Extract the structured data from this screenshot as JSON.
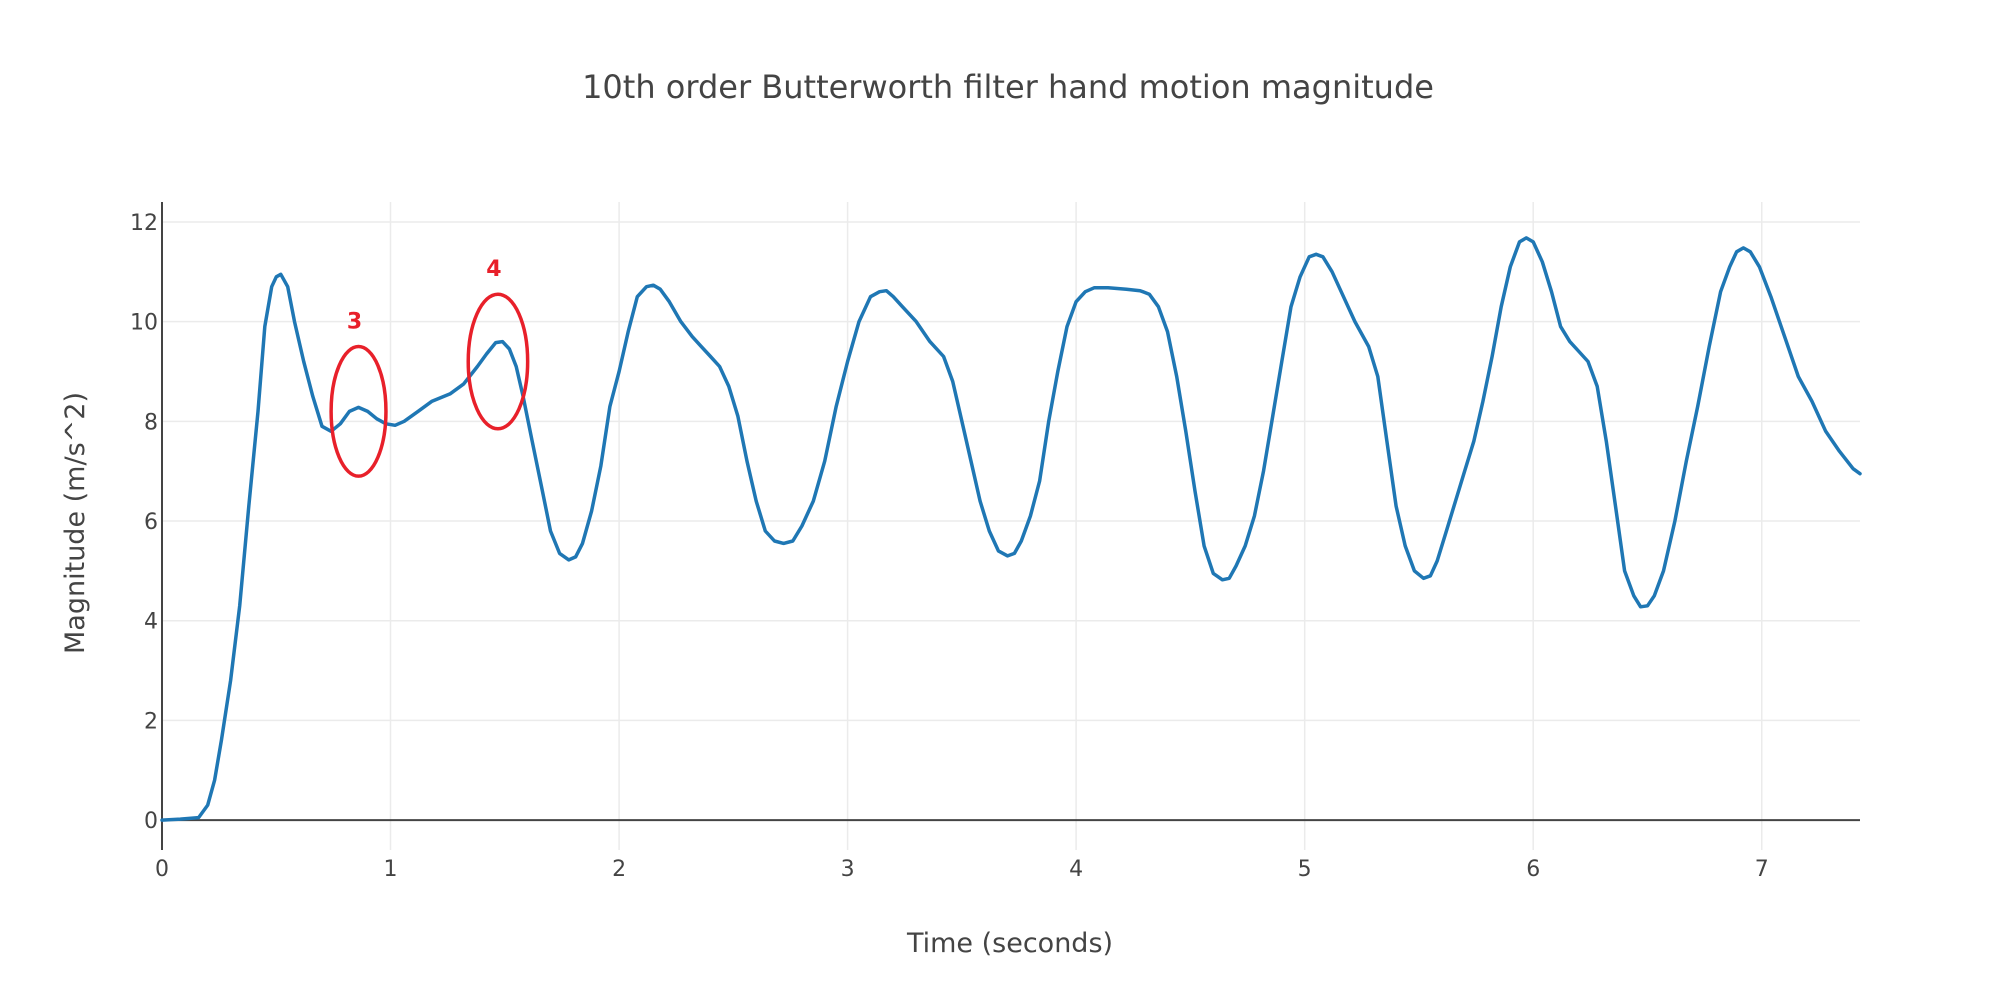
{
  "chart_data": {
    "type": "line",
    "title": "10th order Butterworth filter hand motion magnitude",
    "xlabel": "Time (seconds)",
    "ylabel": "Magnitude (m/s^2)",
    "xlim": [
      0,
      7.43
    ],
    "ylim": [
      -0.6,
      12.4
    ],
    "x_ticks": [
      0,
      1,
      2,
      3,
      4,
      5,
      6,
      7
    ],
    "x_tick_labels": [
      "0",
      "1",
      "2",
      "3",
      "4",
      "5",
      "6",
      "7"
    ],
    "y_ticks": [
      0,
      2,
      4,
      6,
      8,
      10,
      12
    ],
    "y_tick_labels": [
      "0",
      "2",
      "4",
      "6",
      "8",
      "10",
      "12"
    ],
    "grid": true,
    "legend": "none",
    "series": [
      {
        "color": "#1f77b4",
        "points": [
          [
            0,
            0
          ],
          [
            0.08,
            0.02
          ],
          [
            0.16,
            0.05
          ],
          [
            0.2,
            0.3
          ],
          [
            0.23,
            0.8
          ],
          [
            0.26,
            1.6
          ],
          [
            0.3,
            2.8
          ],
          [
            0.34,
            4.3
          ],
          [
            0.38,
            6.3
          ],
          [
            0.42,
            8.2
          ],
          [
            0.45,
            9.9
          ],
          [
            0.48,
            10.7
          ],
          [
            0.5,
            10.9
          ],
          [
            0.52,
            10.95
          ],
          [
            0.55,
            10.7
          ],
          [
            0.58,
            10.0
          ],
          [
            0.62,
            9.2
          ],
          [
            0.66,
            8.5
          ],
          [
            0.7,
            7.9
          ],
          [
            0.74,
            7.8
          ],
          [
            0.78,
            7.95
          ],
          [
            0.82,
            8.2
          ],
          [
            0.86,
            8.28
          ],
          [
            0.9,
            8.2
          ],
          [
            0.94,
            8.05
          ],
          [
            0.98,
            7.95
          ],
          [
            1.02,
            7.92
          ],
          [
            1.06,
            8.0
          ],
          [
            1.12,
            8.2
          ],
          [
            1.18,
            8.4
          ],
          [
            1.26,
            8.55
          ],
          [
            1.32,
            8.75
          ],
          [
            1.38,
            9.1
          ],
          [
            1.42,
            9.35
          ],
          [
            1.46,
            9.58
          ],
          [
            1.49,
            9.6
          ],
          [
            1.52,
            9.45
          ],
          [
            1.55,
            9.1
          ],
          [
            1.58,
            8.5
          ],
          [
            1.62,
            7.6
          ],
          [
            1.66,
            6.7
          ],
          [
            1.7,
            5.8
          ],
          [
            1.74,
            5.35
          ],
          [
            1.78,
            5.22
          ],
          [
            1.81,
            5.28
          ],
          [
            1.84,
            5.55
          ],
          [
            1.88,
            6.2
          ],
          [
            1.92,
            7.1
          ],
          [
            1.96,
            8.3
          ],
          [
            2.0,
            9.0
          ],
          [
            2.04,
            9.8
          ],
          [
            2.08,
            10.5
          ],
          [
            2.12,
            10.7
          ],
          [
            2.15,
            10.73
          ],
          [
            2.18,
            10.65
          ],
          [
            2.22,
            10.4
          ],
          [
            2.27,
            10.0
          ],
          [
            2.32,
            9.7
          ],
          [
            2.36,
            9.5
          ],
          [
            2.4,
            9.3
          ],
          [
            2.44,
            9.1
          ],
          [
            2.48,
            8.7
          ],
          [
            2.52,
            8.1
          ],
          [
            2.56,
            7.2
          ],
          [
            2.6,
            6.4
          ],
          [
            2.64,
            5.8
          ],
          [
            2.68,
            5.6
          ],
          [
            2.72,
            5.55
          ],
          [
            2.76,
            5.6
          ],
          [
            2.8,
            5.9
          ],
          [
            2.85,
            6.4
          ],
          [
            2.9,
            7.2
          ],
          [
            2.95,
            8.3
          ],
          [
            3.0,
            9.2
          ],
          [
            3.05,
            10.0
          ],
          [
            3.1,
            10.5
          ],
          [
            3.14,
            10.6
          ],
          [
            3.17,
            10.62
          ],
          [
            3.2,
            10.5
          ],
          [
            3.24,
            10.3
          ],
          [
            3.3,
            10.0
          ],
          [
            3.36,
            9.6
          ],
          [
            3.42,
            9.3
          ],
          [
            3.46,
            8.8
          ],
          [
            3.5,
            8.0
          ],
          [
            3.54,
            7.2
          ],
          [
            3.58,
            6.4
          ],
          [
            3.62,
            5.8
          ],
          [
            3.66,
            5.4
          ],
          [
            3.7,
            5.3
          ],
          [
            3.73,
            5.35
          ],
          [
            3.76,
            5.6
          ],
          [
            3.8,
            6.1
          ],
          [
            3.84,
            6.8
          ],
          [
            3.88,
            8.0
          ],
          [
            3.92,
            9.0
          ],
          [
            3.96,
            9.9
          ],
          [
            4.0,
            10.4
          ],
          [
            4.04,
            10.6
          ],
          [
            4.08,
            10.68
          ],
          [
            4.14,
            10.68
          ],
          [
            4.22,
            10.65
          ],
          [
            4.28,
            10.62
          ],
          [
            4.32,
            10.55
          ],
          [
            4.36,
            10.3
          ],
          [
            4.4,
            9.8
          ],
          [
            4.44,
            8.9
          ],
          [
            4.48,
            7.8
          ],
          [
            4.52,
            6.6
          ],
          [
            4.56,
            5.5
          ],
          [
            4.6,
            4.95
          ],
          [
            4.64,
            4.82
          ],
          [
            4.67,
            4.85
          ],
          [
            4.7,
            5.1
          ],
          [
            4.74,
            5.5
          ],
          [
            4.78,
            6.1
          ],
          [
            4.82,
            7.0
          ],
          [
            4.86,
            8.1
          ],
          [
            4.9,
            9.2
          ],
          [
            4.94,
            10.3
          ],
          [
            4.98,
            10.9
          ],
          [
            5.02,
            11.3
          ],
          [
            5.05,
            11.35
          ],
          [
            5.08,
            11.3
          ],
          [
            5.12,
            11.0
          ],
          [
            5.16,
            10.6
          ],
          [
            5.22,
            10.0
          ],
          [
            5.28,
            9.5
          ],
          [
            5.32,
            8.9
          ],
          [
            5.36,
            7.6
          ],
          [
            5.4,
            6.3
          ],
          [
            5.44,
            5.5
          ],
          [
            5.48,
            5.0
          ],
          [
            5.52,
            4.85
          ],
          [
            5.55,
            4.9
          ],
          [
            5.58,
            5.2
          ],
          [
            5.62,
            5.8
          ],
          [
            5.66,
            6.4
          ],
          [
            5.7,
            7.0
          ],
          [
            5.74,
            7.6
          ],
          [
            5.78,
            8.4
          ],
          [
            5.82,
            9.3
          ],
          [
            5.86,
            10.3
          ],
          [
            5.9,
            11.1
          ],
          [
            5.94,
            11.6
          ],
          [
            5.97,
            11.68
          ],
          [
            6.0,
            11.6
          ],
          [
            6.04,
            11.2
          ],
          [
            6.08,
            10.6
          ],
          [
            6.12,
            9.9
          ],
          [
            6.16,
            9.6
          ],
          [
            6.2,
            9.4
          ],
          [
            6.24,
            9.2
          ],
          [
            6.28,
            8.7
          ],
          [
            6.32,
            7.6
          ],
          [
            6.36,
            6.3
          ],
          [
            6.4,
            5.0
          ],
          [
            6.44,
            4.5
          ],
          [
            6.47,
            4.28
          ],
          [
            6.5,
            4.3
          ],
          [
            6.53,
            4.5
          ],
          [
            6.57,
            5.0
          ],
          [
            6.62,
            6.0
          ],
          [
            6.67,
            7.2
          ],
          [
            6.72,
            8.3
          ],
          [
            6.77,
            9.5
          ],
          [
            6.82,
            10.6
          ],
          [
            6.86,
            11.1
          ],
          [
            6.89,
            11.4
          ],
          [
            6.92,
            11.48
          ],
          [
            6.95,
            11.4
          ],
          [
            6.99,
            11.1
          ],
          [
            7.04,
            10.5
          ],
          [
            7.1,
            9.7
          ],
          [
            7.16,
            8.9
          ],
          [
            7.22,
            8.4
          ],
          [
            7.28,
            7.8
          ],
          [
            7.34,
            7.4
          ],
          [
            7.4,
            7.05
          ],
          [
            7.43,
            6.95
          ]
        ]
      }
    ],
    "annotations": [
      {
        "label": "3",
        "x": 0.86,
        "y": 8.2,
        "rx": 0.12,
        "ry": 1.3,
        "color": "#e8202a"
      },
      {
        "label": "4",
        "x": 1.47,
        "y": 9.2,
        "rx": 0.13,
        "ry": 1.35,
        "color": "#e8202a"
      }
    ]
  }
}
